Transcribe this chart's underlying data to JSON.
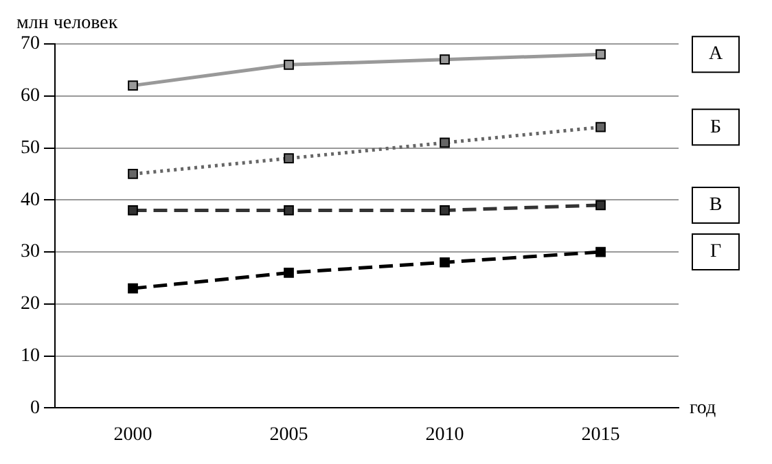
{
  "chart_data": {
    "type": "line",
    "xlabel": "год",
    "ylabel": "млн человек",
    "categories": [
      "2000",
      "2005",
      "2010",
      "2015"
    ],
    "series": [
      {
        "name": "А",
        "color": "#999999",
        "line_style": "solid",
        "values": [
          62,
          66,
          67,
          68
        ]
      },
      {
        "name": "Б",
        "color": "#666666",
        "line_style": "dotted",
        "values": [
          45,
          48,
          51,
          54
        ]
      },
      {
        "name": "В",
        "color": "#333333",
        "line_style": "dashed",
        "values": [
          38,
          38,
          38,
          39
        ]
      },
      {
        "name": "Г",
        "color": "#000000",
        "line_style": "dashed",
        "values": [
          23,
          26,
          28,
          30
        ]
      }
    ],
    "ylim": [
      0,
      70
    ],
    "yticks": [
      0,
      10,
      20,
      30,
      40,
      50,
      60,
      70
    ],
    "grid": "y",
    "marker": "square"
  }
}
